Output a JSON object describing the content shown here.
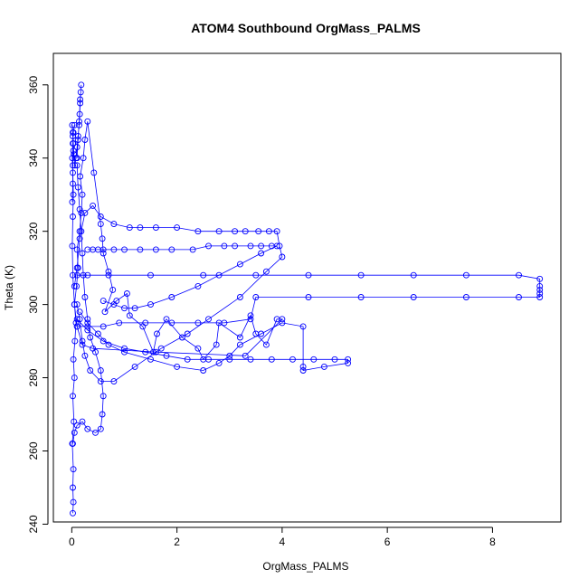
{
  "chart_data": {
    "type": "scatter",
    "mode": "points+lines",
    "title": "ATOM4 Southbound OrgMass_PALMS",
    "xlabel": "OrgMass_PALMS",
    "ylabel": "Theta (K)",
    "xlim": [
      -0.35,
      9.3
    ],
    "ylim": [
      240.6,
      368.6
    ],
    "xticks": [
      0,
      2,
      4,
      6,
      8
    ],
    "yticks": [
      240,
      260,
      280,
      300,
      320,
      340,
      360
    ],
    "grid": false,
    "legend": "none",
    "color": "#0000ff",
    "marker": "open-circle",
    "series": [
      {
        "x": [
          0.02,
          0.03,
          0.02,
          0.03,
          0.01,
          0.04,
          0.02,
          0.05,
          0.03,
          0.06,
          0.08,
          0.05,
          0.09,
          0.12,
          0.1,
          0.15,
          0.18,
          0.2,
          0.16,
          0.22,
          0.25,
          0.3,
          0.42,
          0.55,
          0.58,
          0.6,
          0.7,
          0.78,
          0.63,
          0.85,
          1.05,
          1.1,
          1.35,
          1.55,
          1.62,
          1.8,
          2.1,
          2.4,
          2.5,
          2.75,
          2.8,
          3.2,
          3.4,
          3.5,
          3.7,
          3.9,
          4.0,
          3.3,
          1.6,
          0.4,
          0.2,
          0.1,
          0.05,
          0.02,
          0.01,
          0.02,
          0.03,
          0.02,
          0.01,
          0.02,
          0.03,
          0.05
        ],
        "y": [
          243,
          246,
          250,
          255,
          262,
          268,
          275,
          280,
          285,
          290,
          295,
          300,
          305,
          310,
          315,
          320,
          325,
          330,
          335,
          340,
          345,
          350,
          336,
          322,
          318,
          314,
          309,
          304,
          298,
          301,
          303,
          297,
          294,
          287,
          292,
          296,
          291,
          288,
          285,
          289,
          295,
          291,
          297,
          292,
          289,
          296,
          296,
          286,
          287,
          288,
          289,
          294,
          300,
          308,
          316,
          324,
          330,
          336,
          340,
          344,
          347,
          349
        ]
      },
      {
        "x": [
          0.05,
          0.1,
          0.15,
          0.25,
          0.4,
          0.55,
          0.8,
          1.1,
          1.3,
          1.6,
          2.0,
          2.4,
          2.8,
          3.1,
          3.3,
          3.55,
          3.75,
          3.9,
          3.95,
          4.0,
          3.7,
          3.2,
          2.6,
          2.2,
          1.7,
          1.2,
          0.8,
          0.55,
          0.35,
          0.25,
          0.2,
          0.15,
          0.1
        ],
        "y": [
          305,
          310,
          318,
          325,
          327,
          324,
          322,
          321,
          321,
          321,
          321,
          320,
          320,
          320,
          320,
          320,
          320,
          320,
          316,
          313,
          309,
          302,
          296,
          292,
          288,
          283,
          279,
          279,
          282,
          286,
          290,
          296,
          300
        ]
      },
      {
        "x": [
          0.1,
          0.3,
          0.7,
          1.5,
          2.5,
          3.5,
          4.5,
          5.5,
          6.5,
          7.5,
          8.5,
          8.9,
          8.9,
          8.9,
          8.9,
          8.9,
          8.5,
          7.5,
          6.5,
          5.5,
          4.5,
          3.5,
          3.4,
          2.9,
          2.4,
          1.9,
          1.4,
          0.9,
          0.6,
          0.3,
          0.1
        ],
        "y": [
          308,
          308,
          308,
          308,
          308,
          308,
          308,
          308,
          308,
          308,
          308,
          307,
          305,
          304,
          303,
          302,
          302,
          302,
          302,
          302,
          302,
          302,
          296,
          295,
          295,
          295,
          295,
          295,
          294,
          294,
          294
        ]
      },
      {
        "x": [
          0.1,
          0.3,
          0.6,
          1.0,
          1.4,
          1.8,
          2.2,
          2.6,
          3.0,
          3.4,
          3.8,
          4.2,
          4.6,
          5.0,
          5.25,
          5.25,
          4.8,
          4.4,
          4.4,
          4.4,
          4.0,
          3.6,
          3.2,
          3.0,
          2.8,
          2.5,
          2.0,
          1.5,
          1.0,
          0.7,
          0.5,
          0.3,
          0.15
        ],
        "y": [
          296,
          293,
          290,
          288,
          287,
          286,
          285,
          285,
          285,
          285,
          285,
          285,
          285,
          285,
          285,
          284,
          283,
          282,
          283,
          294,
          295,
          292,
          289,
          286,
          284,
          282,
          283,
          285,
          287,
          289,
          292,
          295,
          298
        ]
      },
      {
        "x": [
          0.02,
          0.05,
          0.1,
          0.2,
          0.3,
          0.45,
          0.55,
          0.58,
          0.6,
          0.55,
          0.45,
          0.35,
          0.3,
          0.25,
          0.22,
          0.2,
          0.18,
          0.15,
          0.12,
          0.1
        ],
        "y": [
          262,
          265,
          267,
          268,
          266,
          265,
          266,
          270,
          275,
          282,
          287,
          291,
          296,
          302,
          308,
          314,
          320,
          326,
          332,
          338
        ]
      },
      {
        "x": [
          0.01,
          0.02,
          0.02,
          0.03,
          0.02,
          0.01,
          0.02,
          0.03,
          0.04,
          0.06,
          0.08,
          0.1,
          0.12,
          0.14,
          0.15,
          0.16,
          0.17,
          0.18,
          0.16,
          0.14,
          0.12,
          0.1
        ],
        "y": [
          328,
          333,
          338,
          342,
          346,
          349,
          347,
          344,
          341,
          338,
          340,
          343,
          346,
          349,
          352,
          355,
          358,
          360,
          356,
          350,
          345,
          340
        ]
      },
      {
        "x": [
          0.3,
          0.4,
          0.5,
          0.6,
          0.8,
          1.0,
          1.3,
          1.6,
          1.9,
          2.3,
          2.6,
          2.9,
          3.1,
          3.4,
          3.6,
          3.8,
          3.9,
          3.6,
          3.2,
          2.8,
          2.4,
          1.9,
          1.5,
          1.2,
          1.0,
          0.8,
          0.6
        ],
        "y": [
          315,
          315,
          315,
          315,
          315,
          315,
          315,
          315,
          315,
          315,
          316,
          316,
          316,
          316,
          316,
          316,
          316,
          314,
          311,
          308,
          305,
          302,
          300,
          299,
          299,
          300,
          301
        ]
      }
    ]
  }
}
